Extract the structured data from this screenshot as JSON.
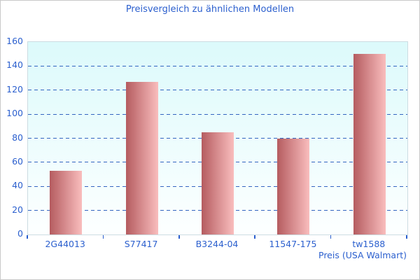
{
  "title": "Preisvergleich zu ähnlichen Modellen",
  "colors": {
    "text_blue": "#2b5fce",
    "grid_blue": "#3465c0",
    "bar_gradient_dark": "#b55c60",
    "bar_gradient_light": "#f9bdbd",
    "plot_bg_top": "#dcfafb",
    "plot_bg_bottom": "#fdffff",
    "plot_border": "#ccdce2",
    "outer_border": "#c9c9c9"
  },
  "chart_data": {
    "type": "bar",
    "title": "Preisvergleich zu ähnlichen Modellen",
    "categories": [
      "2G44013",
      "S77417",
      "B3244-04",
      "11547-175",
      "tw1588"
    ],
    "values": [
      53,
      127,
      85,
      80,
      150
    ],
    "xlabel": "Preis (USA Walmart)",
    "ylabel": "",
    "ylim": [
      0,
      160
    ],
    "ytick_step": 20,
    "yticks": [
      0,
      20,
      40,
      60,
      80,
      100,
      120,
      140,
      160
    ],
    "grid": "horizontal-dashed",
    "legend": "none",
    "bar_style": "horizontal-gradient-cylinder"
  }
}
